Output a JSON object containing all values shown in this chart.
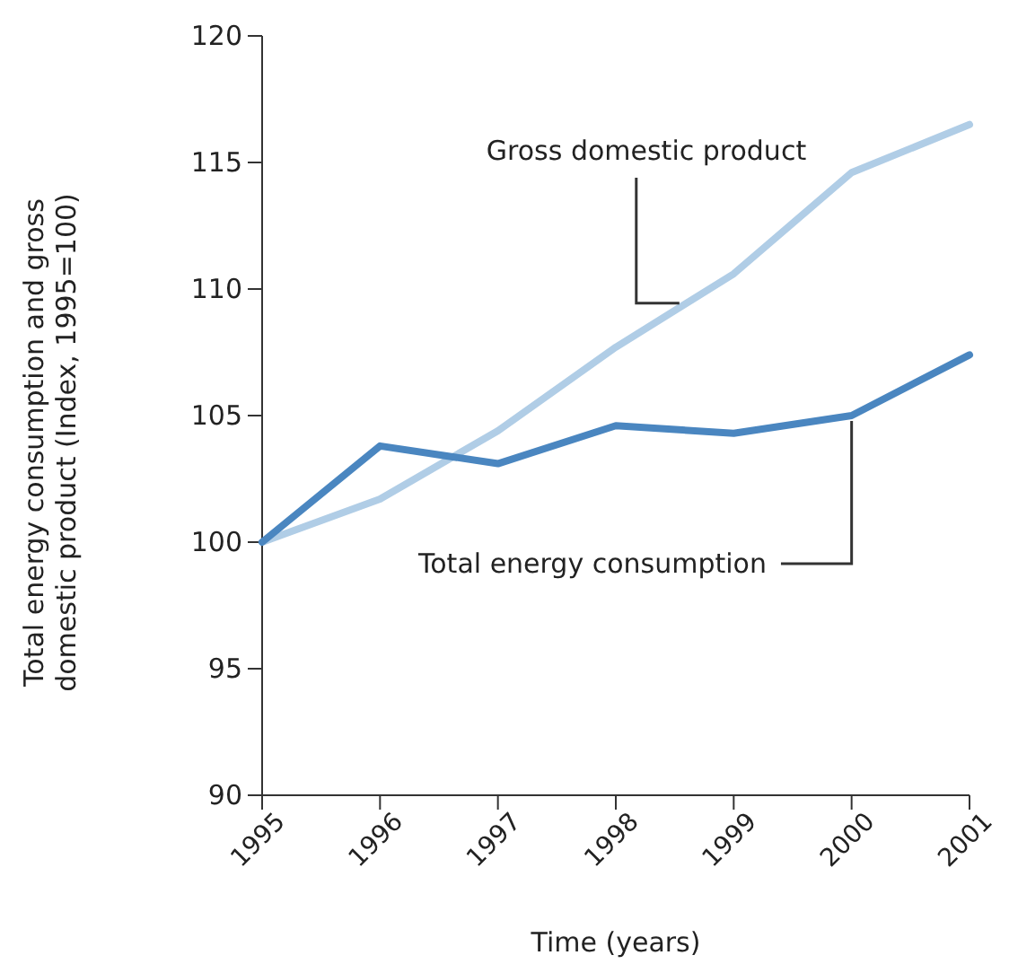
{
  "chart_data": {
    "type": "line",
    "xlabel": "Time (years)",
    "ylabel": "Total energy consumption and gross domestic product (Index, 1995=100)",
    "x": [
      1995,
      1996,
      1997,
      1998,
      1999,
      2000,
      2001
    ],
    "series": [
      {
        "name": "Gross domestic product",
        "color": "#b0cde6",
        "values": [
          100,
          101.7,
          104.4,
          107.7,
          110.6,
          114.6,
          116.5
        ]
      },
      {
        "name": "Total energy consumption",
        "color": "#4a86c0",
        "values": [
          100,
          103.8,
          103.1,
          104.6,
          104.3,
          105.0,
          107.4
        ]
      }
    ],
    "xlim": [
      1995,
      2001
    ],
    "xticks": [
      1995,
      1996,
      1997,
      1998,
      1999,
      2000,
      2001
    ],
    "ylim": [
      90,
      120
    ],
    "yticks": [
      90,
      95,
      100,
      105,
      110,
      115,
      120
    ],
    "marker": "none",
    "line_style": "solid"
  }
}
